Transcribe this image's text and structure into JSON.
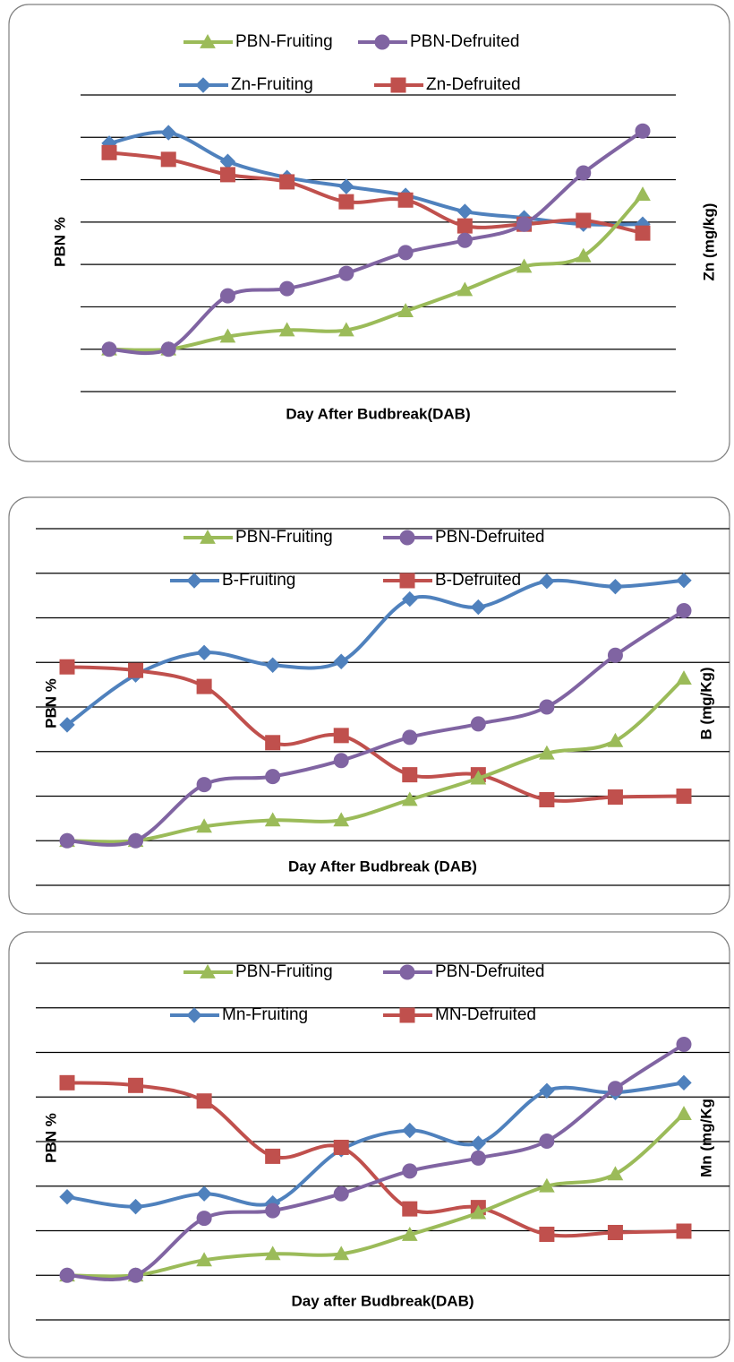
{
  "chart_data": [
    {
      "type": "line",
      "grid": true,
      "legend": "top",
      "xlabel": "Day After Budbreak(DAB)",
      "ylabel": "PBN %",
      "y2label": "Zn (mg/kg)",
      "categories": [
        null,
        null,
        null,
        null,
        null,
        null,
        null,
        null,
        null,
        null
      ],
      "ylim": [
        -1,
        6
      ],
      "yticks": [
        -1,
        0,
        1,
        2,
        3,
        4,
        5,
        6
      ],
      "series": [
        {
          "name": "PBN-Fruiting",
          "color": "#9bbb59",
          "marker": "triangle",
          "values": [
            0,
            0,
            0.3,
            0.45,
            0.45,
            0.9,
            1.4,
            1.95,
            2.2,
            3.65
          ]
        },
        {
          "name": "PBN-Defruited",
          "color": "#8064a2",
          "marker": "circle",
          "values": [
            0,
            0,
            1.26,
            1.43,
            1.79,
            2.28,
            2.57,
            2.95,
            4.16,
            5.15
          ]
        },
        {
          "name": "Zn-Fruiting",
          "color": "#4f81bd",
          "marker": "diamond",
          "values": [
            4.86,
            5.11,
            4.43,
            4.05,
            3.84,
            3.63,
            3.25,
            3.1,
            2.95,
            2.95
          ]
        },
        {
          "name": "Zn-Defruited",
          "color": "#c0504d",
          "marker": "square",
          "values": [
            4.64,
            4.48,
            4.12,
            3.95,
            3.48,
            3.52,
            2.91,
            2.95,
            3.04,
            2.74
          ]
        }
      ]
    },
    {
      "type": "line",
      "grid": true,
      "legend": "top",
      "xlabel": "Day After Budbreak (DAB)",
      "ylabel": "PBN %",
      "y2label": "B (mg/Kg)",
      "categories": [
        null,
        null,
        null,
        null,
        null,
        null,
        null,
        null,
        null,
        null
      ],
      "ylim": [
        -1,
        7
      ],
      "yticks": [
        -1,
        0,
        1,
        2,
        3,
        4,
        5,
        6,
        7
      ],
      "series": [
        {
          "name": "PBN-Fruiting",
          "color": "#9bbb59",
          "marker": "triangle",
          "values": [
            0,
            0,
            0.32,
            0.46,
            0.46,
            0.92,
            1.4,
            1.96,
            2.24,
            3.64
          ]
        },
        {
          "name": "PBN-Defruited",
          "color": "#8064a2",
          "marker": "circle",
          "values": [
            0,
            0,
            1.26,
            1.44,
            1.8,
            2.32,
            2.62,
            3.0,
            4.16,
            5.16
          ]
        },
        {
          "name": "B-Fruiting",
          "color": "#4f81bd",
          "marker": "diamond",
          "values": [
            2.6,
            3.72,
            4.22,
            3.94,
            4.02,
            5.42,
            5.24,
            5.82,
            5.7,
            5.84
          ]
        },
        {
          "name": "B-Defruited",
          "color": "#c0504d",
          "marker": "square",
          "values": [
            3.9,
            3.82,
            3.46,
            2.2,
            2.36,
            1.48,
            1.48,
            0.92,
            0.98,
            1.0
          ]
        }
      ]
    },
    {
      "type": "line",
      "grid": true,
      "legend": "top",
      "xlabel": "Day after Budbreak(DAB)",
      "ylabel": "PBN %",
      "y2label": "Mn (mg/Kg",
      "categories": [
        null,
        null,
        null,
        null,
        null,
        null,
        null,
        null,
        null,
        null
      ],
      "ylim": [
        -1,
        7
      ],
      "yticks": [
        -1,
        0,
        1,
        2,
        3,
        4,
        5,
        6,
        7
      ],
      "series": [
        {
          "name": "PBN-Fruiting",
          "color": "#9bbb59",
          "marker": "triangle",
          "values": [
            0,
            0,
            0.34,
            0.48,
            0.48,
            0.91,
            1.4,
            2.0,
            2.27,
            3.62
          ]
        },
        {
          "name": "PBN-Defruited",
          "color": "#8064a2",
          "marker": "circle",
          "values": [
            0,
            0,
            1.28,
            1.45,
            1.83,
            2.34,
            2.63,
            3.01,
            4.19,
            5.18
          ]
        },
        {
          "name": "Mn-Fruiting",
          "color": "#4f81bd",
          "marker": "diamond",
          "values": [
            1.76,
            1.54,
            1.83,
            1.62,
            2.82,
            3.25,
            2.96,
            4.14,
            4.1,
            4.32
          ]
        },
        {
          "name": "MN-Defruited",
          "color": "#c0504d",
          "marker": "square",
          "values": [
            4.32,
            4.26,
            3.91,
            2.67,
            2.87,
            1.49,
            1.52,
            0.92,
            0.96,
            0.99
          ]
        }
      ]
    }
  ]
}
